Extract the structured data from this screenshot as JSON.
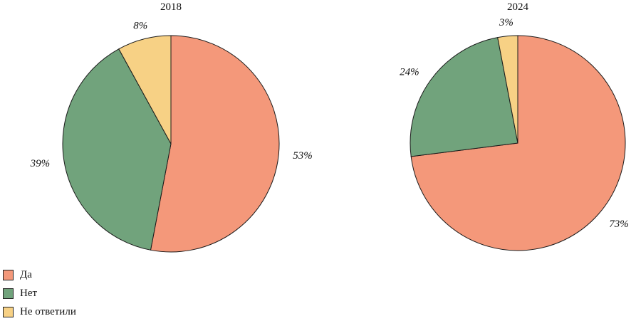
{
  "chart_data": [
    {
      "type": "pie",
      "title": "2018",
      "categories": [
        "Да",
        "Нет",
        "Не ответили"
      ],
      "values": [
        53,
        39,
        8
      ],
      "labels": [
        "53%",
        "39%",
        "8%"
      ],
      "colors": [
        "#f4987a",
        "#71a37c",
        "#f7d185"
      ],
      "start": "top, clockwise"
    },
    {
      "type": "pie",
      "title": "2024",
      "categories": [
        "Да",
        "Нет",
        "Не ответили"
      ],
      "values": [
        73,
        24,
        3
      ],
      "labels": [
        "73%",
        "24%",
        "3%"
      ],
      "colors": [
        "#f4987a",
        "#71a37c",
        "#f7d185"
      ],
      "start": "top, clockwise"
    }
  ],
  "legend": {
    "items": [
      {
        "label": "Да",
        "color": "#f4987a"
      },
      {
        "label": "Нет",
        "color": "#71a37c"
      },
      {
        "label": "Не ответили",
        "color": "#f7d185"
      }
    ],
    "position": "bottom-left"
  }
}
